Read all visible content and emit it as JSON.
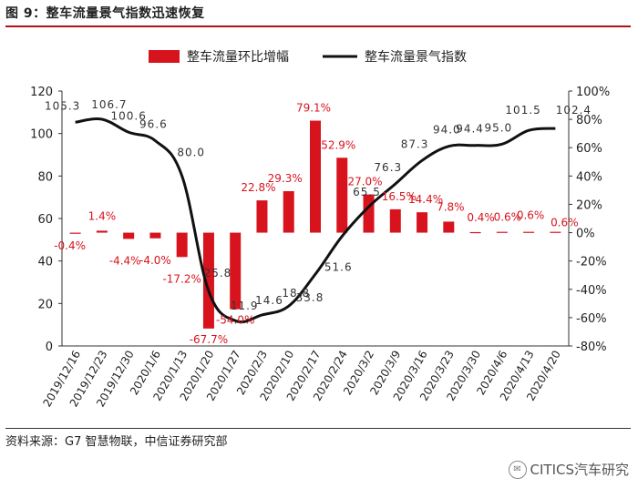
{
  "header": {
    "title": "图 9：整车流量景气指数迅速恢复"
  },
  "footer": {
    "source": "资料来源：G7 智慧物联，中信证券研究部"
  },
  "watermark": {
    "text": "CITICS汽车研究"
  },
  "colors": {
    "bar": "#d7141e",
    "line": "#111111",
    "bar_label": "#d7141e",
    "line_label": "#333333",
    "accent_rule": "#b0121b"
  },
  "chart_data": {
    "type": "bar+line",
    "categories": [
      "2019/12/16",
      "2019/12/23",
      "2019/12/30",
      "2020/1/6",
      "2020/1/13",
      "2020/1/20",
      "2020/1/27",
      "2020/2/3",
      "2020/2/10",
      "2020/2/17",
      "2020/2/24",
      "2020/3/2",
      "2020/3/9",
      "2020/3/16",
      "2020/3/23",
      "2020/3/30",
      "2020/4/6",
      "2020/4/13",
      "2020/4/20"
    ],
    "series": [
      {
        "name": "整车流量环比增幅",
        "type": "bar",
        "axis": "right",
        "values": [
          -0.4,
          1.4,
          -4.4,
          -4.0,
          -17.2,
          -67.7,
          -54.0,
          22.8,
          29.3,
          79.1,
          52.9,
          27.0,
          16.5,
          14.4,
          7.8,
          0.4,
          0.6,
          0.6,
          0.6
        ],
        "labels": [
          "-0.4%",
          "1.4%",
          "-4.4%",
          "-4.0%",
          "-17.2%",
          "-67.7%",
          "-54.0%",
          "22.8%",
          "29.3%",
          "79.1%",
          "52.9%",
          "27.0%",
          "16.5%",
          "14.4%",
          "7.8%",
          "0.4%",
          "0.6%",
          "0.6%",
          "0.6%"
        ]
      },
      {
        "name": "整车流量景气指数",
        "type": "line",
        "axis": "left",
        "values": [
          105.3,
          106.7,
          100.6,
          96.6,
          80.0,
          25.8,
          11.9,
          14.6,
          18.8,
          33.8,
          51.6,
          65.5,
          76.3,
          87.3,
          94.0,
          94.4,
          95.0,
          101.5,
          102.4
        ],
        "labels": [
          "105.3",
          "106.7",
          "100.6",
          "96.6",
          "80.0",
          "25.8",
          "11.9",
          "14.6",
          "18.8",
          "33.8",
          "51.6",
          "65.5",
          "76.3",
          "87.3",
          "94.0",
          "94.4",
          "95.0",
          "101.5",
          "102.4"
        ]
      }
    ],
    "left_axis": {
      "min": 0,
      "max": 120,
      "ticks": [
        "0",
        "20",
        "40",
        "60",
        "80",
        "100",
        "120"
      ]
    },
    "right_axis": {
      "min": -80,
      "max": 100,
      "ticks": [
        "-80%",
        "-60%",
        "-40%",
        "-20%",
        "0%",
        "20%",
        "40%",
        "60%",
        "80%",
        "100%"
      ]
    },
    "legend": [
      "整车流量环比增幅",
      "整车流量景气指数"
    ],
    "legend_position": "top"
  }
}
